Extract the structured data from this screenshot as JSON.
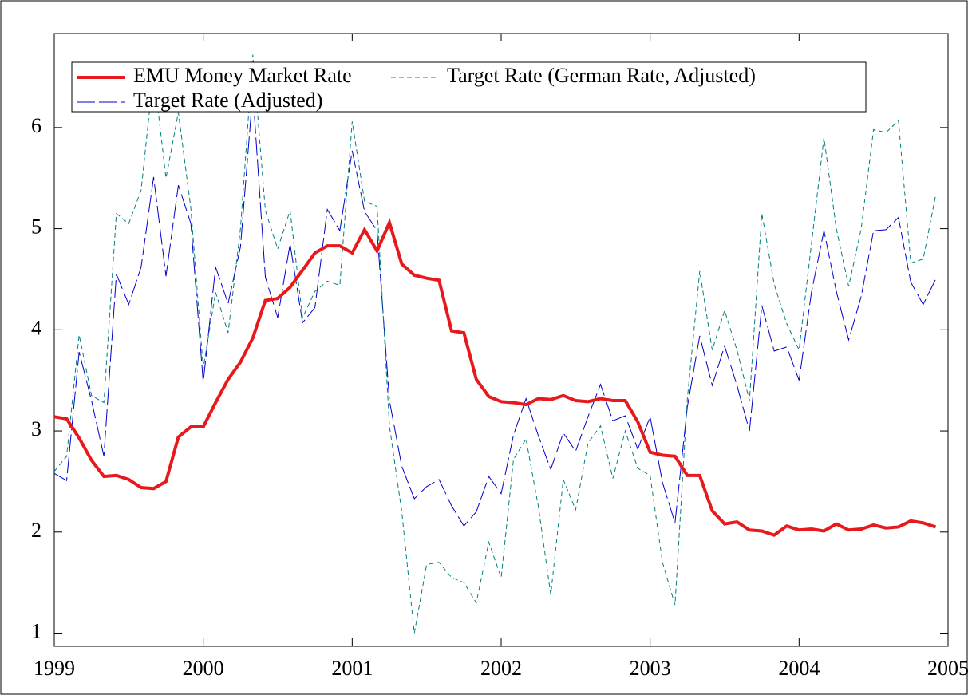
{
  "chart_data": {
    "type": "line",
    "x": [
      1999,
      1999.083,
      1999.167,
      1999.25,
      1999.333,
      1999.417,
      1999.5,
      1999.583,
      1999.667,
      1999.75,
      1999.833,
      1999.917,
      2000,
      2000.083,
      2000.167,
      2000.25,
      2000.333,
      2000.417,
      2000.5,
      2000.583,
      2000.667,
      2000.75,
      2000.833,
      2000.917,
      2001,
      2001.083,
      2001.167,
      2001.25,
      2001.333,
      2001.417,
      2001.5,
      2001.583,
      2001.667,
      2001.75,
      2001.833,
      2001.917,
      2002,
      2002.083,
      2002.167,
      2002.25,
      2002.333,
      2002.417,
      2002.5,
      2002.583,
      2002.667,
      2002.75,
      2002.833,
      2002.917,
      2003,
      2003.083,
      2003.167,
      2003.25,
      2003.333,
      2003.417,
      2003.5,
      2003.583,
      2003.667,
      2003.75,
      2003.833,
      2003.917,
      2004,
      2004.083,
      2004.167,
      2004.25,
      2004.333,
      2004.417,
      2004.5,
      2004.583,
      2004.667,
      2004.75,
      2004.833,
      2004.917
    ],
    "series": [
      {
        "name": "EMU Money Market Rate",
        "color": "#e8191c",
        "linestyle": "solid",
        "linewidth": 4,
        "values": [
          3.14,
          3.12,
          2.93,
          2.71,
          2.55,
          2.56,
          2.52,
          2.44,
          2.43,
          2.5,
          2.94,
          3.04,
          3.04,
          3.28,
          3.51,
          3.68,
          3.92,
          4.29,
          4.31,
          4.42,
          4.59,
          4.76,
          4.83,
          4.83,
          4.76,
          4.99,
          4.78,
          5.06,
          4.65,
          4.54,
          4.51,
          4.49,
          3.99,
          3.97,
          3.51,
          3.34,
          3.29,
          3.28,
          3.26,
          3.32,
          3.31,
          3.35,
          3.3,
          3.29,
          3.32,
          3.3,
          3.3,
          3.09,
          2.79,
          2.76,
          2.75,
          2.56,
          2.56,
          2.21,
          2.08,
          2.1,
          2.02,
          2.01,
          1.97,
          2.06,
          2.02,
          2.03,
          2.01,
          2.08,
          2.02,
          2.03,
          2.07,
          2.04,
          2.05,
          2.11,
          2.09,
          2.05
        ]
      },
      {
        "name": "Target Rate (German Rate, Adjusted)",
        "color": "#007f7f",
        "linestyle": "dashed",
        "linewidth": 1,
        "values": [
          2.6,
          2.75,
          3.95,
          3.35,
          3.28,
          5.15,
          5.05,
          5.38,
          6.55,
          5.5,
          6.15,
          5.2,
          3.62,
          4.37,
          3.97,
          5.0,
          6.72,
          5.18,
          4.8,
          5.18,
          4.12,
          4.38,
          4.48,
          4.44,
          6.06,
          5.27,
          5.22,
          3.05,
          2.2,
          1.0,
          1.68,
          1.7,
          1.55,
          1.5,
          1.3,
          1.9,
          1.55,
          2.72,
          2.92,
          2.25,
          1.38,
          2.52,
          2.22,
          2.88,
          3.05,
          2.53,
          3.0,
          2.63,
          2.56,
          1.7,
          1.28,
          3.32,
          4.58,
          3.8,
          4.19,
          3.8,
          3.3,
          5.15,
          4.45,
          4.06,
          3.8,
          4.85,
          5.9,
          5.0,
          4.43,
          5.0,
          5.98,
          5.95,
          6.07,
          4.66,
          4.7,
          5.33
        ]
      },
      {
        "name": "Target Rate (Adjusted)",
        "color": "#0000cc",
        "linestyle": "longdash",
        "linewidth": 1,
        "values": [
          2.58,
          2.51,
          3.78,
          3.3,
          2.75,
          4.55,
          4.25,
          4.62,
          5.51,
          4.53,
          5.43,
          5.05,
          3.48,
          4.62,
          4.26,
          4.82,
          6.35,
          4.52,
          4.12,
          4.85,
          4.07,
          4.22,
          5.19,
          4.98,
          5.77,
          5.17,
          4.98,
          3.3,
          2.65,
          2.33,
          2.45,
          2.52,
          2.26,
          2.06,
          2.2,
          2.55,
          2.38,
          2.96,
          3.32,
          2.95,
          2.62,
          2.98,
          2.8,
          3.14,
          3.46,
          3.1,
          3.15,
          2.82,
          3.14,
          2.49,
          2.09,
          3.24,
          3.94,
          3.45,
          3.84,
          3.45,
          3.0,
          4.24,
          3.79,
          3.83,
          3.5,
          4.37,
          4.98,
          4.38,
          3.9,
          4.33,
          4.98,
          4.99,
          5.11,
          4.47,
          4.25,
          4.5
        ]
      }
    ],
    "xlim": [
      1999,
      2005
    ],
    "xticks": [
      1999,
      2000,
      2001,
      2002,
      2003,
      2004,
      2005
    ],
    "ylim": [
      0.87,
      6.93
    ],
    "yticks": [
      1,
      2,
      3,
      4,
      5,
      6
    ],
    "legend": "upper left"
  }
}
